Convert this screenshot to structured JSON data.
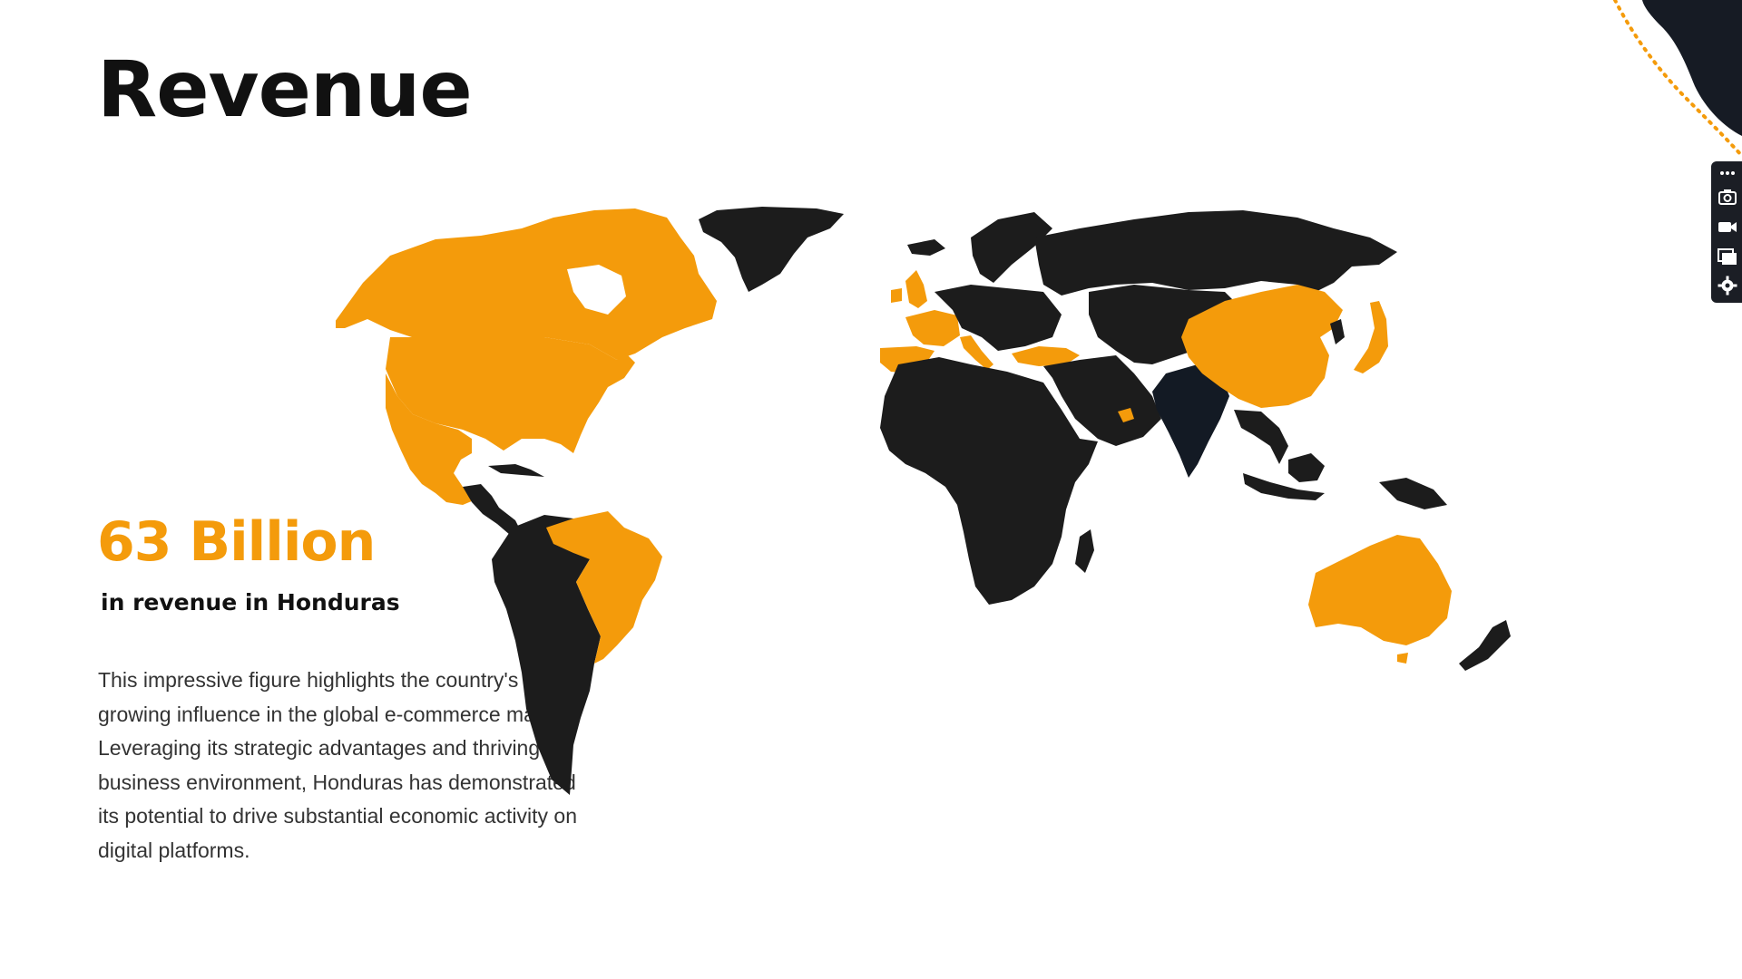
{
  "slide": {
    "title": "Revenue",
    "stat_value": "63 Billion",
    "stat_caption": "in revenue in Honduras",
    "description": "This impressive figure highlights the country's growing influence in the global e-commerce market. Leveraging its strategic advantages and thriving business environment, Honduras has demonstrated its potential to drive substantial economic activity on digital platforms."
  },
  "map": {
    "highlight_color": "#f49b0b",
    "base_color": "#1c1c1c",
    "emphasis_color": "#131a24",
    "highlighted_regions": [
      "Canada",
      "United States",
      "Mexico",
      "Brazil",
      "United Kingdom",
      "Ireland",
      "France",
      "Spain",
      "Portugal",
      "Italy",
      "Switzerland",
      "Turkey",
      "United Arab Emirates",
      "China",
      "Japan",
      "Australia"
    ],
    "emphasized_regions": [
      "India"
    ]
  },
  "toolbar": {
    "icons": [
      "settings-dots-icon",
      "camera-icon",
      "video-icon",
      "layers-icon",
      "gear-icon"
    ]
  },
  "theme": {
    "accent": "#f49b0b",
    "dark": "#1b1e25"
  }
}
